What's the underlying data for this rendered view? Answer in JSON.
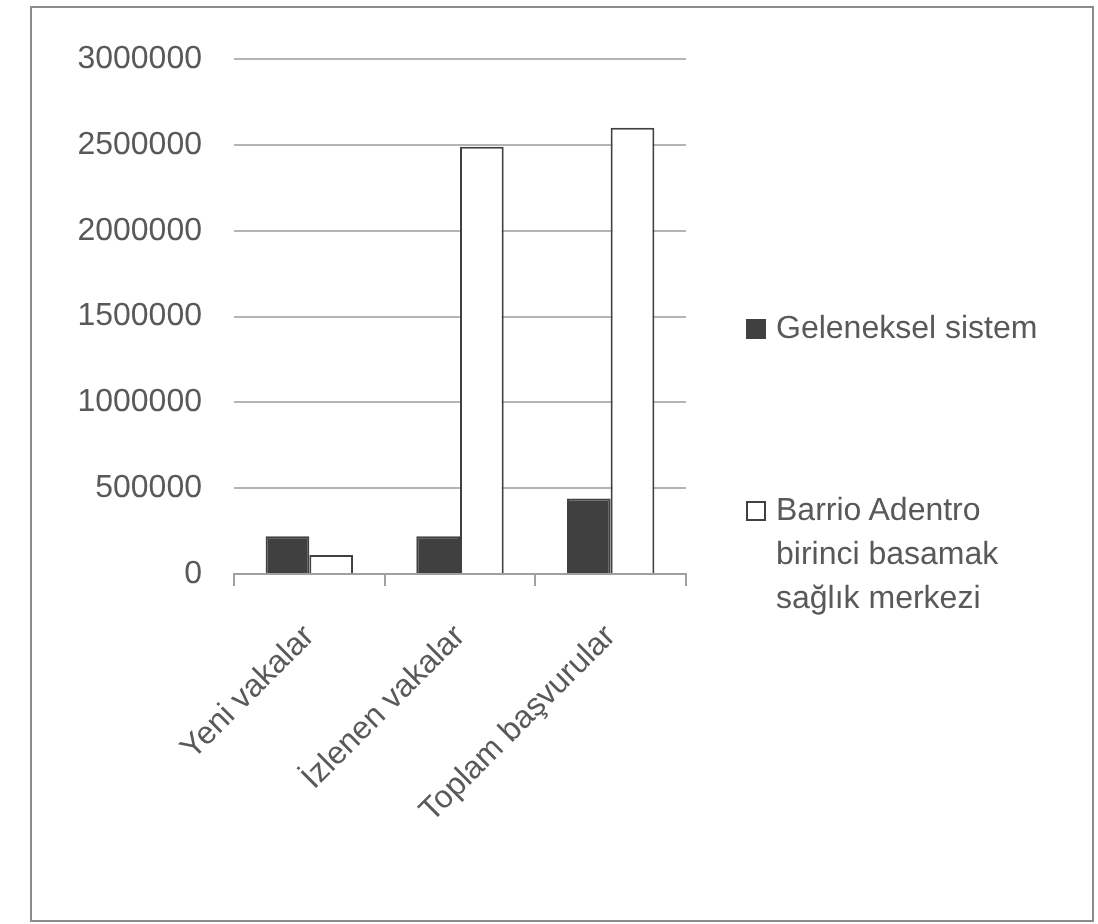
{
  "chart_data": {
    "type": "bar",
    "categories": [
      "Yeni vakalar",
      "İzlenen vakalar",
      "Toplam başvurular"
    ],
    "series": [
      {
        "name": "Geleneksel sistem",
        "color": "#404040",
        "values": [
          220000,
          220000,
          440000
        ]
      },
      {
        "name": "Barrio Adentro birinci basamak sağlık merkezi",
        "color": "#ffffff",
        "values": [
          110000,
          2490000,
          2600000
        ]
      }
    ],
    "ylim": [
      0,
      3000000
    ],
    "yticks": [
      0,
      500000,
      1000000,
      1500000,
      2000000,
      2500000,
      3000000
    ],
    "grid": "y",
    "legend": "right"
  }
}
